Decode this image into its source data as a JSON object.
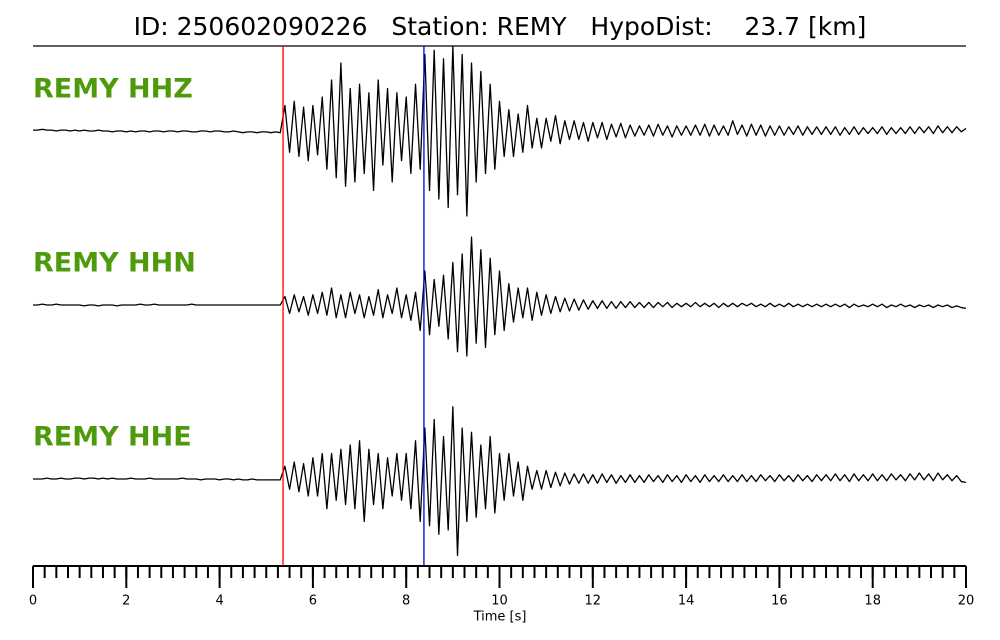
{
  "chart_data": {
    "type": "line",
    "title": "ID: 250602090226   Station: REMY   HypoDist:    23.7 [km]",
    "xlabel": "Time [s]",
    "xlim": [
      0,
      20
    ],
    "xticks": [
      0,
      2,
      4,
      6,
      8,
      10,
      12,
      14,
      16,
      18,
      20
    ],
    "x_minor_step": 0.25,
    "label_color": "#4d9a0c",
    "vlines": [
      {
        "x": 5.36,
        "color": "#ff0000"
      },
      {
        "x": 8.38,
        "color": "#0000cc"
      }
    ],
    "x": [
      0,
      0.1,
      0.2,
      0.3,
      0.4,
      0.5,
      0.6,
      0.7,
      0.8,
      0.9,
      1,
      1.1,
      1.2,
      1.3,
      1.4,
      1.5,
      1.6,
      1.7,
      1.8,
      1.9,
      2,
      2.1,
      2.2,
      2.3,
      2.4,
      2.5,
      2.6,
      2.7,
      2.8,
      2.9,
      3,
      3.1,
      3.2,
      3.3,
      3.4,
      3.5,
      3.6,
      3.7,
      3.8,
      3.9,
      4,
      4.1,
      4.2,
      4.3,
      4.4,
      4.5,
      4.6,
      4.7,
      4.8,
      4.9,
      5,
      5.1,
      5.2,
      5.3,
      5.4,
      5.5,
      5.6,
      5.7,
      5.8,
      5.9,
      6,
      6.1,
      6.2,
      6.3,
      6.4,
      6.5,
      6.6,
      6.7,
      6.8,
      6.9,
      7,
      7.1,
      7.2,
      7.3,
      7.4,
      7.5,
      7.6,
      7.7,
      7.8,
      7.9,
      8,
      8.1,
      8.2,
      8.3,
      8.4,
      8.5,
      8.6,
      8.7,
      8.8,
      8.9,
      9,
      9.1,
      9.2,
      9.3,
      9.4,
      9.5,
      9.6,
      9.7,
      9.8,
      9.9,
      10,
      10.1,
      10.2,
      10.3,
      10.4,
      10.5,
      10.6,
      10.7,
      10.8,
      10.9,
      11,
      11.1,
      11.2,
      11.3,
      11.4,
      11.5,
      11.6,
      11.7,
      11.8,
      11.9,
      12,
      12.1,
      12.2,
      12.3,
      12.4,
      12.5,
      12.6,
      12.7,
      12.8,
      12.9,
      13,
      13.1,
      13.2,
      13.3,
      13.4,
      13.5,
      13.6,
      13.7,
      13.8,
      13.9,
      14,
      14.1,
      14.2,
      14.3,
      14.4,
      14.5,
      14.6,
      14.7,
      14.8,
      14.9,
      15,
      15.1,
      15.2,
      15.3,
      15.4,
      15.5,
      15.6,
      15.7,
      15.8,
      15.9,
      16,
      16.1,
      16.2,
      16.3,
      16.4,
      16.5,
      16.6,
      16.7,
      16.8,
      16.9,
      17,
      17.1,
      17.2,
      17.3,
      17.4,
      17.5,
      17.6,
      17.7,
      17.8,
      17.9,
      18,
      18.1,
      18.2,
      18.3,
      18.4,
      18.5,
      18.6,
      18.7,
      18.8,
      18.9,
      19,
      19.1,
      19.2,
      19.3,
      19.4,
      19.5,
      19.6,
      19.7,
      19.8,
      19.9,
      20
    ],
    "series": [
      {
        "name": "REMY HHZ",
        "color": "#000000",
        "values": [
          0.01,
          0.01,
          0.02,
          0.01,
          0.01,
          0,
          0.01,
          0.01,
          0,
          0.01,
          0,
          0.01,
          0,
          0,
          0.01,
          0,
          0,
          -0.01,
          0,
          0,
          -0.01,
          0,
          -0.01,
          0,
          0,
          -0.01,
          0,
          0,
          -0.01,
          0,
          0,
          -0.01,
          0,
          0,
          -0.01,
          -0.01,
          0,
          0,
          -0.01,
          0,
          0,
          -0.01,
          -0.01,
          0,
          -0.01,
          -0.02,
          -0.01,
          -0.01,
          -0.02,
          -0.01,
          -0.01,
          -0.02,
          -0.01,
          -0.02,
          0.3,
          -0.25,
          0.35,
          -0.3,
          0.28,
          -0.35,
          0.3,
          -0.28,
          0.4,
          -0.45,
          0.6,
          -0.55,
          0.8,
          -0.65,
          0.5,
          -0.6,
          0.55,
          -0.5,
          0.45,
          -0.7,
          0.6,
          -0.4,
          0.5,
          -0.6,
          0.45,
          -0.35,
          0.4,
          -0.5,
          0.55,
          -0.45,
          0.9,
          -0.7,
          0.95,
          -0.8,
          0.85,
          -0.9,
          1.0,
          -0.75,
          0.9,
          -1.0,
          0.8,
          -0.6,
          0.7,
          -0.5,
          0.55,
          -0.45,
          0.35,
          -0.3,
          0.25,
          -0.3,
          0.2,
          -0.25,
          0.3,
          -0.2,
          0.15,
          -0.2,
          0.15,
          -0.12,
          0.18,
          -0.15,
          0.12,
          -0.1,
          0.12,
          -0.1,
          0.1,
          -0.12,
          0.1,
          -0.08,
          0.1,
          -0.1,
          0.08,
          -0.07,
          0.09,
          -0.08,
          0.07,
          -0.06,
          0.06,
          -0.05,
          0.07,
          -0.06,
          0.08,
          -0.05,
          0.06,
          -0.07,
          0.06,
          -0.05,
          0.06,
          -0.05,
          0.07,
          -0.05,
          0.08,
          -0.06,
          0.07,
          -0.05,
          0.06,
          -0.05,
          0.12,
          -0.04,
          0.07,
          -0.06,
          0.08,
          -0.05,
          0.07,
          -0.06,
          0.06,
          -0.05,
          0.06,
          -0.05,
          0.05,
          -0.04,
          0.06,
          -0.05,
          0.05,
          -0.04,
          0.05,
          -0.04,
          0.05,
          -0.04,
          0.05,
          -0.05,
          0.04,
          -0.04,
          0.05,
          -0.04,
          0.04,
          -0.03,
          0.04,
          -0.03,
          0.05,
          -0.04,
          0.04,
          -0.03,
          0.04,
          -0.03,
          0.05,
          -0.03,
          0.05,
          -0.02,
          0.05,
          -0.03,
          0.06,
          -0.02,
          0.05,
          -0.02,
          0.05,
          -0.01,
          0.03
        ]
      },
      {
        "name": "REMY HHN",
        "color": "#000000",
        "values": [
          0,
          0,
          0.01,
          0,
          0,
          0.01,
          0,
          0,
          0,
          0,
          0,
          -0.01,
          0,
          0,
          -0.01,
          0,
          0,
          0,
          -0.01,
          0,
          0,
          0,
          0,
          0.01,
          0,
          0,
          0.01,
          0,
          0,
          0,
          0,
          0,
          0,
          0,
          0.01,
          0,
          0,
          0,
          0,
          0,
          0,
          0,
          0,
          0,
          0,
          0,
          0,
          0,
          0,
          0,
          0,
          0,
          0,
          0,
          0.1,
          -0.1,
          0.12,
          -0.08,
          0.1,
          -0.12,
          0.12,
          -0.1,
          0.15,
          -0.12,
          0.2,
          -0.15,
          0.12,
          -0.15,
          0.15,
          -0.1,
          0.12,
          -0.15,
          0.1,
          -0.12,
          0.18,
          -0.15,
          0.12,
          -0.1,
          0.2,
          -0.15,
          0.12,
          -0.18,
          0.15,
          -0.3,
          0.4,
          -0.35,
          0.3,
          -0.25,
          0.35,
          -0.4,
          0.5,
          -0.55,
          0.6,
          -0.6,
          0.8,
          -0.45,
          0.65,
          -0.5,
          0.55,
          -0.35,
          0.4,
          -0.3,
          0.25,
          -0.2,
          0.2,
          -0.15,
          0.2,
          -0.18,
          0.15,
          -0.12,
          0.12,
          -0.1,
          0.1,
          -0.08,
          0.08,
          -0.07,
          0.07,
          -0.06,
          0.06,
          -0.05,
          0.05,
          -0.04,
          0.05,
          -0.04,
          0.04,
          -0.04,
          0.04,
          -0.03,
          0.04,
          -0.03,
          0.03,
          -0.03,
          0.03,
          -0.03,
          0.03,
          -0.02,
          0.03,
          -0.03,
          0.02,
          -0.02,
          0.02,
          -0.02,
          0.03,
          -0.02,
          0.02,
          -0.02,
          0.02,
          -0.03,
          0.02,
          -0.02,
          0.02,
          -0.02,
          0.02,
          -0.01,
          0.02,
          -0.02,
          0.01,
          -0.02,
          0.02,
          -0.02,
          0.01,
          -0.02,
          0.02,
          -0.02,
          0.01,
          -0.02,
          0.01,
          -0.02,
          0.01,
          -0.02,
          0.01,
          -0.02,
          0.01,
          -0.02,
          0.01,
          -0.03,
          0.01,
          -0.02,
          0,
          -0.02,
          0.01,
          -0.02,
          0.01,
          -0.03,
          0,
          -0.02,
          0.01,
          -0.02,
          0,
          -0.03,
          0,
          -0.02,
          0,
          -0.03,
          0,
          -0.02,
          0,
          -0.03,
          -0.01,
          -0.03,
          -0.04
        ]
      },
      {
        "name": "REMY HHE",
        "color": "#000000",
        "values": [
          0,
          0,
          0,
          0.01,
          0,
          0,
          0.01,
          0,
          0,
          0.01,
          0.01,
          0,
          0.01,
          0.01,
          0,
          0.01,
          0,
          0.01,
          0,
          0,
          0,
          0.01,
          0,
          0,
          0,
          0.01,
          0,
          0,
          0,
          0,
          0,
          0,
          0.01,
          0,
          0,
          0,
          -0.01,
          0,
          0,
          0,
          -0.01,
          0,
          0,
          -0.01,
          0,
          -0.01,
          -0.01,
          0,
          -0.01,
          -0.01,
          -0.01,
          -0.01,
          -0.01,
          -0.01,
          0.15,
          -0.12,
          0.2,
          -0.15,
          0.18,
          -0.2,
          0.25,
          -0.2,
          0.3,
          -0.35,
          0.3,
          -0.25,
          0.35,
          -0.3,
          0.4,
          -0.35,
          0.45,
          -0.5,
          0.35,
          -0.3,
          0.3,
          -0.35,
          0.25,
          -0.2,
          0.3,
          -0.25,
          0.3,
          -0.35,
          0.45,
          -0.5,
          0.6,
          -0.55,
          0.7,
          -0.65,
          0.5,
          -0.6,
          0.85,
          -0.9,
          0.6,
          -0.5,
          0.55,
          -0.45,
          0.4,
          -0.35,
          0.5,
          -0.4,
          0.3,
          -0.25,
          0.3,
          -0.2,
          0.2,
          -0.25,
          0.15,
          -0.12,
          0.1,
          -0.12,
          0.1,
          -0.1,
          0.08,
          -0.08,
          0.07,
          -0.06,
          0.06,
          -0.05,
          0.06,
          -0.05,
          0.05,
          -0.05,
          0.06,
          -0.04,
          0.05,
          -0.05,
          0.04,
          -0.04,
          0.05,
          -0.04,
          0.04,
          -0.04,
          0.05,
          -0.03,
          0.04,
          -0.04,
          0.05,
          -0.03,
          0.04,
          -0.04,
          0.05,
          -0.03,
          0.04,
          -0.04,
          0.05,
          -0.03,
          0.04,
          -0.03,
          0.05,
          -0.03,
          0.04,
          -0.03,
          0.05,
          -0.03,
          0.04,
          -0.03,
          0.05,
          -0.02,
          0.04,
          -0.03,
          0.05,
          -0.02,
          0.04,
          -0.03,
          0.05,
          -0.02,
          0.04,
          -0.03,
          0.05,
          -0.02,
          0.05,
          -0.02,
          0.06,
          -0.02,
          0.05,
          -0.03,
          0.06,
          -0.02,
          0.05,
          -0.02,
          0.06,
          -0.02,
          0.05,
          -0.02,
          0.06,
          -0.01,
          0.05,
          -0.02,
          0.06,
          -0.01,
          0.07,
          -0.01,
          0.06,
          -0.02,
          0.07,
          -0.01,
          0.05,
          -0.02,
          0.04,
          -0.03,
          -0.04
        ]
      }
    ]
  }
}
